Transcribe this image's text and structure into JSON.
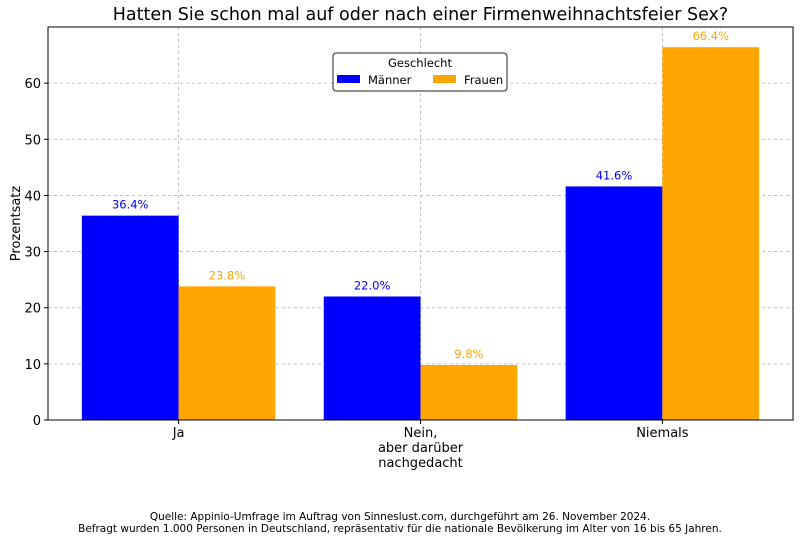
{
  "chart_data": {
    "type": "bar",
    "title": "Hatten Sie schon mal auf oder nach einer Firmenweihnachtsfeier Sex?",
    "xlabel": "",
    "ylabel": "Prozentsatz",
    "categories": [
      [
        "Ja"
      ],
      [
        "Nein,",
        "aber darüber",
        "nachgedacht"
      ],
      [
        "Niemals"
      ]
    ],
    "series": [
      {
        "name": "Männer",
        "color": "#0000ff",
        "values": [
          36.4,
          22.0,
          41.6
        ],
        "labels": [
          "36.4%",
          "22.0%",
          "41.6%"
        ]
      },
      {
        "name": "Frauen",
        "color": "#ffa500",
        "values": [
          23.8,
          9.8,
          66.4
        ],
        "labels": [
          "23.8%",
          "9.8%",
          "66.4%"
        ]
      }
    ],
    "ylim": [
      0,
      70
    ],
    "yticks": [
      0,
      10,
      20,
      30,
      40,
      50,
      60
    ],
    "grid": true,
    "legend": {
      "title": "Geschlecht",
      "placement": "top-center"
    }
  },
  "footer": {
    "line1": "Quelle: Appinio-Umfrage im Auftrag von Sinneslust.com, durchgeführt am 26. November 2024.",
    "line2": "Befragt wurden 1.000 Personen in Deutschland, repräsentativ für die nationale Bevölkerung im Alter von 16 bis 65 Jahren."
  }
}
